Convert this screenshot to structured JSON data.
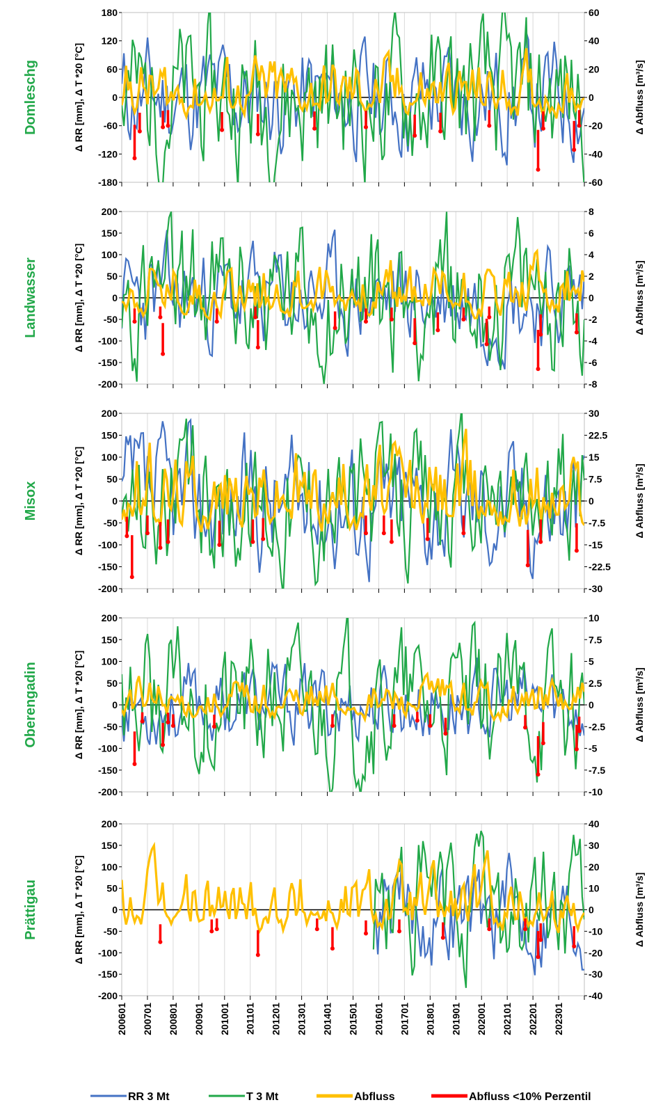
{
  "colors": {
    "rr": "#4472C4",
    "t": "#21A849",
    "abfluss": "#FFC000",
    "low": "#FF0000",
    "station": "#21A849",
    "grid": "#D9D9D9"
  },
  "legend": {
    "rr": "RR  3 Mt",
    "t": "T  3 Mt",
    "abfluss": "Abfluss",
    "low": "Abfluss <10% Perzentil"
  },
  "chart_data": {
    "type": "line",
    "x_ticks": [
      "200601",
      "200701",
      "200801",
      "200901",
      "201001",
      "201101",
      "201201",
      "201301",
      "201401",
      "201501",
      "201601",
      "201701",
      "201801",
      "201901",
      "202001",
      "202101",
      "202201",
      "202301"
    ],
    "x_range": [
      "2006-01",
      "2023-12"
    ],
    "legend_position": "bottom",
    "grid": true,
    "panels": [
      {
        "station": "Domleschg",
        "ylabel_left": "Δ RR [mm], Δ T *20 [°C]",
        "ylabel_right": "Δ Abfluss [m³/s]",
        "left_ticks": [
          "180",
          "120",
          "60",
          "0",
          "-60",
          "-120",
          "-180"
        ],
        "right_ticks": [
          "60",
          "40",
          "20",
          "0",
          "-20",
          "-40",
          "-60"
        ],
        "ylim_left": [
          -180,
          180
        ],
        "ylim_right": [
          -60,
          60
        ],
        "seed": 11,
        "rr_amp": 60,
        "t_amp": 80,
        "q_amp": 10,
        "rr_start": 0,
        "t_start": 0,
        "low_markers": [
          [
            2006.5,
            -43
          ],
          [
            2006.7,
            -24
          ],
          [
            2007.6,
            -21
          ],
          [
            2007.8,
            -20
          ],
          [
            2009.9,
            -23
          ],
          [
            2011.3,
            -26
          ],
          [
            2013.5,
            -22
          ],
          [
            2015.5,
            -21
          ],
          [
            2017.4,
            -27
          ],
          [
            2018.4,
            -24
          ],
          [
            2020.3,
            -20
          ],
          [
            2022.2,
            -51
          ],
          [
            2022.4,
            -22
          ],
          [
            2023.6,
            -37
          ],
          [
            2023.8,
            -20
          ]
        ]
      },
      {
        "station": "Landwasser",
        "ylabel_left": "Δ RR [mm], Δ T *20 [°C]",
        "ylabel_right": "Δ Abfluss [m³/s]",
        "left_ticks": [
          "200",
          "150",
          "100",
          "50",
          "0",
          "-50",
          "-100",
          "-150",
          "-200"
        ],
        "right_ticks": [
          "8",
          "6",
          "4",
          "2",
          "0",
          "-2",
          "-4",
          "-6",
          "-8"
        ],
        "ylim_left": [
          -200,
          200
        ],
        "ylim_right": [
          -8,
          8
        ],
        "seed": 23,
        "rr_amp": 60,
        "t_amp": 85,
        "q_amp": 1.3,
        "rr_start": 0,
        "t_start": 0,
        "low_markers": [
          [
            2006.5,
            -2.2
          ],
          [
            2007.6,
            -5.2
          ],
          [
            2007.5,
            -1.8
          ],
          [
            2009.7,
            -2.2
          ],
          [
            2011.3,
            -4.6
          ],
          [
            2011.2,
            -1.8
          ],
          [
            2014.3,
            -2.8
          ],
          [
            2015.5,
            -2.2
          ],
          [
            2016.5,
            -2
          ],
          [
            2017.4,
            -4.2
          ],
          [
            2018.3,
            -3
          ],
          [
            2019.3,
            -2
          ],
          [
            2020.2,
            -4.3
          ],
          [
            2020.3,
            -1.8
          ],
          [
            2022.2,
            -6.6
          ],
          [
            2022.3,
            -3.4
          ],
          [
            2023.7,
            -3.2
          ]
        ]
      },
      {
        "station": "Misox",
        "ylabel_left": "Δ RR [mm], Δ T *20 [°C]",
        "ylabel_right": "Δ Abfluss [m³/s]",
        "left_ticks": [
          "200",
          "150",
          "100",
          "50",
          "0",
          "-50",
          "-100",
          "-150",
          "-200"
        ],
        "right_ticks": [
          "30",
          "22.5",
          "15",
          "7.5",
          "0",
          "-7.5",
          "-15",
          "-22.5",
          "-30"
        ],
        "ylim_left": [
          -200,
          200
        ],
        "ylim_right": [
          -30,
          30
        ],
        "seed": 37,
        "rr_amp": 75,
        "t_amp": 80,
        "q_amp": 7,
        "rr_start": 0,
        "t_start": 0,
        "low_markers": [
          [
            2006.4,
            -26
          ],
          [
            2006.2,
            -12
          ],
          [
            2007.0,
            -11
          ],
          [
            2007.5,
            -16
          ],
          [
            2007.8,
            -14
          ],
          [
            2009.8,
            -15
          ],
          [
            2011.1,
            -14
          ],
          [
            2011.5,
            -13
          ],
          [
            2015.5,
            -11
          ],
          [
            2016.2,
            -11
          ],
          [
            2016.5,
            -14
          ],
          [
            2017.9,
            -13
          ],
          [
            2019.3,
            -11
          ],
          [
            2021.8,
            -22
          ],
          [
            2022.3,
            -14
          ],
          [
            2023.7,
            -17
          ]
        ]
      },
      {
        "station": "Oberengadin",
        "ylabel_left": "Δ RR [mm], Δ T *20 [°C]",
        "ylabel_right": "Δ Abfluss [m³/s]",
        "left_ticks": [
          "200",
          "150",
          "100",
          "50",
          "0",
          "-50",
          "-100",
          "-150",
          "-200"
        ],
        "right_ticks": [
          "10",
          "7.5",
          "5",
          "2.5",
          "0",
          "-2.5",
          "-5",
          "-7.5",
          "-10"
        ],
        "ylim_left": [
          -200,
          200
        ],
        "ylim_right": [
          -10,
          10
        ],
        "seed": 53,
        "rr_amp": 45,
        "t_amp": 80,
        "q_amp": 1.1,
        "rr_start": 0,
        "t_start": 0,
        "low_markers": [
          [
            2006.5,
            -6.8
          ],
          [
            2006.8,
            -1.9
          ],
          [
            2007.6,
            -4.6
          ],
          [
            2007.8,
            -2
          ],
          [
            2008.0,
            -2.4
          ],
          [
            2009.6,
            -2.5
          ],
          [
            2014.2,
            -2.4
          ],
          [
            2016.6,
            -2.4
          ],
          [
            2017.5,
            -1.8
          ],
          [
            2018.0,
            -2.4
          ],
          [
            2018.6,
            -3.3
          ],
          [
            2021.7,
            -2.6
          ],
          [
            2022.2,
            -8
          ],
          [
            2022.4,
            -4.4
          ],
          [
            2023.7,
            -5.1
          ],
          [
            2023.8,
            -3
          ]
        ]
      },
      {
        "station": "Prättigau",
        "ylabel_left": "Δ RR [mm], Δ T *20 [°C]",
        "ylabel_right": "Δ Abfluss [m³/s]",
        "left_ticks": [
          "200",
          "150",
          "100",
          "50",
          "0",
          "-50",
          "-100",
          "-150",
          "-200"
        ],
        "right_ticks": [
          "40",
          "30",
          "20",
          "10",
          "0",
          "-10",
          "-20",
          "-30",
          "-40"
        ],
        "ylim_left": [
          -200,
          200
        ],
        "ylim_right": [
          -40,
          40
        ],
        "seed": 71,
        "rr_amp": 60,
        "t_amp": 80,
        "q_amp": 7,
        "rr_start": 2015.75,
        "t_start": 2015.75,
        "low_markers": [
          [
            2007.5,
            -15
          ],
          [
            2009.5,
            -10
          ],
          [
            2009.7,
            -9
          ],
          [
            2011.3,
            -21
          ],
          [
            2013.6,
            -9
          ],
          [
            2014.2,
            -18
          ],
          [
            2015.5,
            -11
          ],
          [
            2016.8,
            -10
          ],
          [
            2018.5,
            -13
          ],
          [
            2020.3,
            -9
          ],
          [
            2022.2,
            -22
          ],
          [
            2022.3,
            -14
          ],
          [
            2023.6,
            -17
          ],
          [
            2021.7,
            -9
          ]
        ]
      }
    ]
  }
}
